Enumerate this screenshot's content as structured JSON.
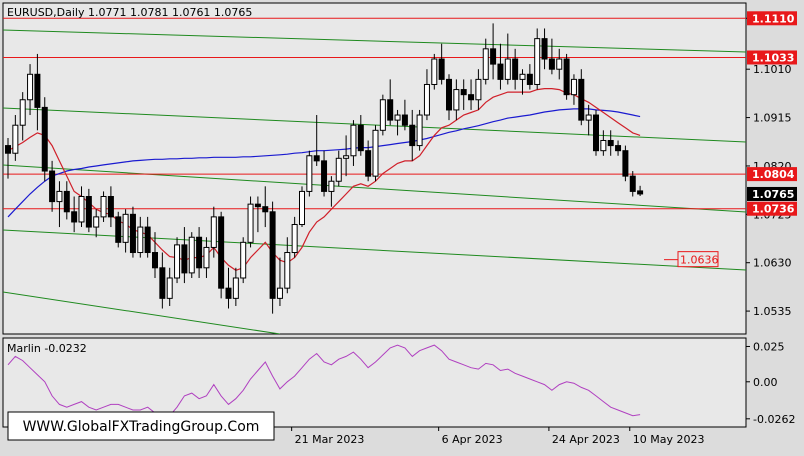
{
  "header": {
    "symbol_line": "EURUSD,Daily  1.0771 1.0781 1.0761 1.0765",
    "indicator_line": "Marlin -0.0232"
  },
  "watermark": "WWW.GlobalFXTradingGroup.Com",
  "colors": {
    "background": "#dcdcdc",
    "plot_background": "#e8e8e8",
    "bull_candle": "#ffffff",
    "bear_candle": "#000000",
    "level_line": "#e8181a",
    "channel_line": "#1f8a1f",
    "ma_blue": "#1a1ad0",
    "ma_red": "#d0202a",
    "oscillator": "#b040c0"
  },
  "chart_data": [
    {
      "type": "candlestick",
      "title": "EURUSD,Daily",
      "last": {
        "open": 1.0771,
        "high": 1.0781,
        "low": 1.0761,
        "close": 1.0765
      },
      "y_ticks": [
        "1.1110",
        "1.1010",
        "1.0915",
        "1.0820",
        "1.0725",
        "1.0630",
        "1.0535"
      ],
      "x_ticks": [
        "21 Mar 2023",
        "6 Apr 2023",
        "24 Apr 2023",
        "10 May 2023"
      ],
      "ylim": [
        1.049,
        1.114
      ],
      "grid": false,
      "price_labels": [
        {
          "text": "1.1110",
          "value": 1.111,
          "type": "level"
        },
        {
          "text": "1.1033",
          "value": 1.1033,
          "type": "level"
        },
        {
          "text": "1.0804",
          "value": 1.0804,
          "type": "level"
        },
        {
          "text": "1.0765",
          "value": 1.0765,
          "type": "current"
        },
        {
          "text": "1.0736",
          "value": 1.0736,
          "type": "level"
        }
      ],
      "target_label": {
        "text": "1.0636",
        "value": 1.0636
      },
      "candles": [
        [
          1.086,
          1.0875,
          1.0795,
          1.0845
        ],
        [
          1.0845,
          1.092,
          1.083,
          1.09
        ],
        [
          1.09,
          1.0965,
          1.087,
          1.095
        ],
        [
          1.095,
          1.102,
          1.092,
          1.1
        ],
        [
          1.1,
          1.104,
          1.089,
          1.0935
        ],
        [
          1.0935,
          1.0955,
          1.079,
          1.081
        ],
        [
          1.081,
          1.083,
          1.073,
          1.075
        ],
        [
          1.075,
          1.079,
          1.07,
          1.077
        ],
        [
          1.077,
          1.079,
          1.0715,
          1.073
        ],
        [
          1.073,
          1.076,
          1.069,
          1.071
        ],
        [
          1.071,
          1.078,
          1.07,
          1.076
        ],
        [
          1.076,
          1.0775,
          1.069,
          1.07
        ],
        [
          1.07,
          1.0735,
          1.068,
          1.072
        ],
        [
          1.072,
          1.077,
          1.071,
          1.076
        ],
        [
          1.076,
          1.078,
          1.07,
          1.072
        ],
        [
          1.072,
          1.073,
          1.066,
          1.067
        ],
        [
          1.067,
          1.0735,
          1.065,
          1.0725
        ],
        [
          1.0725,
          1.074,
          1.064,
          1.065
        ],
        [
          1.065,
          1.072,
          1.064,
          1.07
        ],
        [
          1.07,
          1.072,
          1.064,
          1.065
        ],
        [
          1.065,
          1.069,
          1.06,
          1.062
        ],
        [
          1.062,
          1.065,
          1.054,
          1.056
        ],
        [
          1.056,
          1.062,
          1.0545,
          1.06
        ],
        [
          1.06,
          1.068,
          1.059,
          1.0665
        ],
        [
          1.0665,
          1.07,
          1.059,
          1.061
        ],
        [
          1.061,
          1.069,
          1.06,
          1.068
        ],
        [
          1.068,
          1.07,
          1.06,
          1.062
        ],
        [
          1.062,
          1.068,
          1.06,
          1.066
        ],
        [
          1.066,
          1.074,
          1.064,
          1.072
        ],
        [
          1.072,
          1.073,
          1.056,
          1.058
        ],
        [
          1.058,
          1.062,
          1.054,
          1.056
        ],
        [
          1.056,
          1.062,
          1.0545,
          1.06
        ],
        [
          1.06,
          1.068,
          1.059,
          1.067
        ],
        [
          1.067,
          1.076,
          1.066,
          1.0745
        ],
        [
          1.0745,
          1.076,
          1.069,
          1.074
        ],
        [
          1.074,
          1.078,
          1.07,
          1.073
        ],
        [
          1.073,
          1.075,
          1.053,
          1.056
        ],
        [
          1.056,
          1.064,
          1.0545,
          1.058
        ],
        [
          1.058,
          1.068,
          1.057,
          1.065
        ],
        [
          1.065,
          1.072,
          1.064,
          1.0705
        ],
        [
          1.0705,
          1.078,
          1.07,
          1.077
        ],
        [
          1.077,
          1.085,
          1.076,
          1.084
        ],
        [
          1.084,
          1.092,
          1.082,
          1.083
        ],
        [
          1.083,
          1.085,
          1.076,
          1.077
        ],
        [
          1.077,
          1.08,
          1.074,
          1.079
        ],
        [
          1.079,
          1.085,
          1.078,
          1.0835
        ],
        [
          1.0835,
          1.088,
          1.08,
          1.084
        ],
        [
          1.084,
          1.091,
          1.082,
          1.09
        ],
        [
          1.09,
          1.092,
          1.084,
          1.085
        ],
        [
          1.085,
          1.087,
          1.079,
          1.08
        ],
        [
          1.08,
          1.09,
          1.079,
          1.089
        ],
        [
          1.089,
          1.096,
          1.088,
          1.095
        ],
        [
          1.095,
          1.099,
          1.09,
          1.091
        ],
        [
          1.091,
          1.093,
          1.088,
          1.092
        ],
        [
          1.092,
          1.095,
          1.089,
          1.09
        ],
        [
          1.09,
          1.093,
          1.083,
          1.086
        ],
        [
          1.086,
          1.093,
          1.085,
          1.092
        ],
        [
          1.092,
          1.101,
          1.091,
          1.098
        ],
        [
          1.098,
          1.104,
          1.097,
          1.103
        ],
        [
          1.103,
          1.106,
          1.098,
          1.099
        ],
        [
          1.099,
          1.1,
          1.091,
          1.093
        ],
        [
          1.093,
          1.099,
          1.091,
          1.097
        ],
        [
          1.097,
          1.099,
          1.093,
          1.096
        ],
        [
          1.096,
          1.099,
          1.093,
          1.095
        ],
        [
          1.095,
          1.101,
          1.093,
          1.099
        ],
        [
          1.099,
          1.107,
          1.098,
          1.105
        ],
        [
          1.105,
          1.11,
          1.099,
          1.102
        ],
        [
          1.102,
          1.106,
          1.097,
          1.099
        ],
        [
          1.099,
          1.108,
          1.098,
          1.103
        ],
        [
          1.103,
          1.105,
          1.097,
          1.099
        ],
        [
          1.099,
          1.101,
          1.096,
          1.1
        ],
        [
          1.1,
          1.102,
          1.097,
          1.098
        ],
        [
          1.098,
          1.109,
          1.097,
          1.107
        ],
        [
          1.107,
          1.109,
          1.101,
          1.103
        ],
        [
          1.103,
          1.107,
          1.1,
          1.101
        ],
        [
          1.101,
          1.105,
          1.099,
          1.103
        ],
        [
          1.103,
          1.104,
          1.095,
          1.096
        ],
        [
          1.096,
          1.1,
          1.094,
          1.099
        ],
        [
          1.099,
          1.101,
          1.09,
          1.091
        ],
        [
          1.091,
          1.094,
          1.088,
          1.092
        ],
        [
          1.092,
          1.093,
          1.084,
          1.085
        ],
        [
          1.085,
          1.089,
          1.084,
          1.087
        ],
        [
          1.087,
          1.089,
          1.084,
          1.086
        ],
        [
          1.086,
          1.087,
          1.084,
          1.085
        ],
        [
          1.085,
          1.086,
          1.079,
          1.08
        ],
        [
          1.08,
          1.081,
          1.076,
          1.077
        ],
        [
          1.0771,
          1.0781,
          1.0761,
          1.0765
        ]
      ],
      "series": [
        {
          "type": "line",
          "color": "blue",
          "values": [
            1.072,
            1.0735,
            1.075,
            1.0765,
            1.0778,
            1.079,
            1.08,
            1.0805,
            1.081,
            1.0813,
            1.0815,
            1.0818,
            1.082,
            1.0822,
            1.0824,
            1.0826,
            1.0828,
            1.083,
            1.0831,
            1.0832,
            1.0833,
            1.0833,
            1.0834,
            1.0834,
            1.0835,
            1.0835,
            1.0836,
            1.0836,
            1.0837,
            1.0837,
            1.0837,
            1.0837,
            1.0838,
            1.0838,
            1.0839,
            1.084,
            1.0841,
            1.0842,
            1.0843,
            1.0845,
            1.0846,
            1.0848,
            1.085,
            1.085,
            1.0851,
            1.0852,
            1.0853,
            1.0855,
            1.0856,
            1.0856,
            1.0858,
            1.086,
            1.0862,
            1.0864,
            1.0866,
            1.0868,
            1.0871,
            1.0874,
            1.0878,
            1.0882,
            1.0886,
            1.0889,
            1.0893,
            1.0896,
            1.0899,
            1.0903,
            1.0907,
            1.091,
            1.0914,
            1.0916,
            1.0918,
            1.092,
            1.0923,
            1.0926,
            1.0928,
            1.093,
            1.0931,
            1.0932,
            1.0932,
            1.0932,
            1.093,
            1.0929,
            1.0928,
            1.0926,
            1.0923,
            1.092,
            1.0917
          ]
        },
        {
          "type": "line",
          "color": "red",
          "values": [
            1.085,
            1.0858,
            1.0866,
            1.0876,
            1.0885,
            1.088,
            1.086,
            1.083,
            1.08,
            1.077,
            1.076,
            1.0748,
            1.0735,
            1.0728,
            1.0725,
            1.0712,
            1.0706,
            1.0695,
            1.069,
            1.0685,
            1.067,
            1.0655,
            1.0642,
            1.064,
            1.0635,
            1.064,
            1.064,
            1.0645,
            1.066,
            1.064,
            1.0625,
            1.0615,
            1.062,
            1.064,
            1.0655,
            1.067,
            1.065,
            1.0635,
            1.063,
            1.064,
            1.066,
            1.069,
            1.071,
            1.072,
            1.0735,
            1.075,
            1.0765,
            1.078,
            1.0785,
            1.078,
            1.079,
            1.0805,
            1.0815,
            1.0825,
            1.083,
            1.083,
            1.084,
            1.086,
            1.088,
            1.0895,
            1.09,
            1.091,
            1.092,
            1.0925,
            1.093,
            1.0945,
            1.0955,
            1.096,
            1.0965,
            1.0965,
            1.0965,
            1.0965,
            1.097,
            1.0972,
            1.0972,
            1.097,
            1.0963,
            1.096,
            1.0952,
            1.0945,
            1.0935,
            1.0925,
            1.0915,
            1.0905,
            1.0895,
            1.0885,
            1.088
          ]
        }
      ]
    },
    {
      "type": "line",
      "title": "Marlin",
      "last_value": -0.0232,
      "y_ticks": [
        "0.025",
        "0.00",
        "-0.0262"
      ],
      "ylim": [
        -0.032,
        0.031
      ],
      "series": [
        {
          "name": "Marlin",
          "values": [
            0.012,
            0.018,
            0.015,
            0.01,
            0.005,
            0.0,
            -0.01,
            -0.016,
            -0.018,
            -0.016,
            -0.014,
            -0.018,
            -0.02,
            -0.018,
            -0.016,
            -0.016,
            -0.018,
            -0.02,
            -0.02,
            -0.018,
            -0.022,
            -0.025,
            -0.024,
            -0.018,
            -0.01,
            -0.008,
            -0.012,
            -0.01,
            -0.002,
            -0.01,
            -0.016,
            -0.012,
            -0.006,
            0.002,
            0.008,
            0.014,
            0.004,
            -0.005,
            0.0,
            0.004,
            0.01,
            0.016,
            0.02,
            0.014,
            0.012,
            0.016,
            0.018,
            0.021,
            0.016,
            0.01,
            0.014,
            0.019,
            0.024,
            0.026,
            0.024,
            0.018,
            0.022,
            0.024,
            0.026,
            0.022,
            0.016,
            0.014,
            0.012,
            0.01,
            0.009,
            0.013,
            0.012,
            0.008,
            0.009,
            0.006,
            0.004,
            0.002,
            0.0,
            -0.002,
            -0.006,
            -0.002,
            0.0,
            -0.001,
            -0.004,
            -0.006,
            -0.01,
            -0.014,
            -0.018,
            -0.02,
            -0.022,
            -0.024,
            -0.0232
          ]
        }
      ]
    }
  ]
}
